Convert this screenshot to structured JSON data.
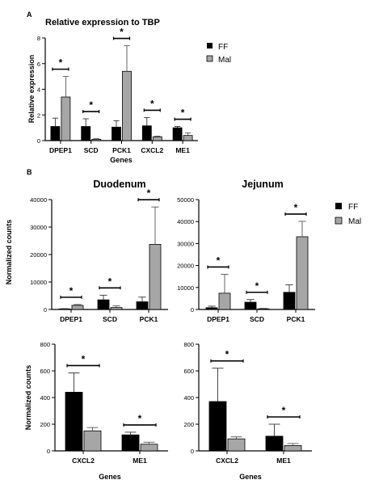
{
  "panel_labels": {
    "a": "A",
    "b": "B"
  },
  "legend_top": [
    "FF",
    "Mal"
  ],
  "legend_bottom": [
    "FF",
    "Mal"
  ],
  "colors": {
    "ff": "#000000",
    "mal": "#a6a6a6"
  },
  "sig_marker": "*",
  "chart_data": [
    {
      "id": "a",
      "type": "bar",
      "title": "Relative expression to TBP",
      "xlabel": "Genes",
      "ylabel": "Relative expression",
      "ylim": [
        0,
        8
      ],
      "yticks": [
        "0",
        "2",
        "4",
        "6",
        "8"
      ],
      "categories": [
        "DPEP1",
        "SCD",
        "PCK1",
        "CXCL2",
        "ME1"
      ],
      "series": [
        {
          "name": "FF",
          "values": [
            1.1,
            1.1,
            1.05,
            1.15,
            1.0
          ],
          "errors": [
            0.65,
            0.6,
            0.5,
            0.65,
            0.1
          ]
        },
        {
          "name": "Mal",
          "values": [
            3.4,
            0.1,
            5.4,
            0.3,
            0.4
          ],
          "errors": [
            1.6,
            0.05,
            2.0,
            0.05,
            0.2
          ]
        }
      ]
    },
    {
      "id": "duo-top",
      "type": "bar",
      "title": "Duodenum",
      "xlabel": "",
      "ylabel": "Normalized counts",
      "ylim": [
        0,
        40000
      ],
      "yticks": [
        "0",
        "10000",
        "20000",
        "30000",
        "40000"
      ],
      "categories": [
        "DPEP1",
        "SCD",
        "PCK1"
      ],
      "series": [
        {
          "name": "FF",
          "values": [
            200,
            3500,
            2800
          ],
          "errors": [
            100,
            1700,
            1700
          ]
        },
        {
          "name": "Mal",
          "values": [
            1500,
            700,
            23700
          ],
          "errors": [
            300,
            600,
            13600
          ]
        }
      ]
    },
    {
      "id": "jej-top",
      "type": "bar",
      "title": "Jejunum",
      "xlabel": "",
      "ylabel": "",
      "ylim": [
        0,
        50000
      ],
      "yticks": [
        "0",
        "10000",
        "20000",
        "30000",
        "40000",
        "50000"
      ],
      "categories": [
        "DPEP1",
        "SCD",
        "PCK1"
      ],
      "series": [
        {
          "name": "FF",
          "values": [
            800,
            3300,
            7800
          ],
          "errors": [
            700,
            1200,
            3400
          ]
        },
        {
          "name": "Mal",
          "values": [
            7400,
            300,
            33100
          ],
          "errors": [
            8600,
            200,
            7000
          ]
        }
      ]
    },
    {
      "id": "duo-bottom",
      "type": "bar",
      "title": "",
      "xlabel": "Genes",
      "ylabel": "Normalized counts",
      "ylim": [
        0,
        800
      ],
      "yticks": [
        "0",
        "200",
        "400",
        "600",
        "800"
      ],
      "categories": [
        "CXCL2",
        "ME1"
      ],
      "series": [
        {
          "name": "FF",
          "values": [
            440,
            120
          ],
          "errors": [
            145,
            20
          ]
        },
        {
          "name": "Mal",
          "values": [
            150,
            50
          ],
          "errors": [
            25,
            15
          ]
        }
      ]
    },
    {
      "id": "jej-bottom",
      "type": "bar",
      "title": "",
      "xlabel": "Genes",
      "ylabel": "",
      "ylim": [
        0,
        800
      ],
      "yticks": [
        "0",
        "200",
        "400",
        "600",
        "800"
      ],
      "categories": [
        "CXCL2",
        "ME1"
      ],
      "series": [
        {
          "name": "FF",
          "values": [
            370,
            110
          ],
          "errors": [
            250,
            90
          ]
        },
        {
          "name": "Mal",
          "values": [
            90,
            40
          ],
          "errors": [
            15,
            15
          ]
        }
      ]
    }
  ]
}
